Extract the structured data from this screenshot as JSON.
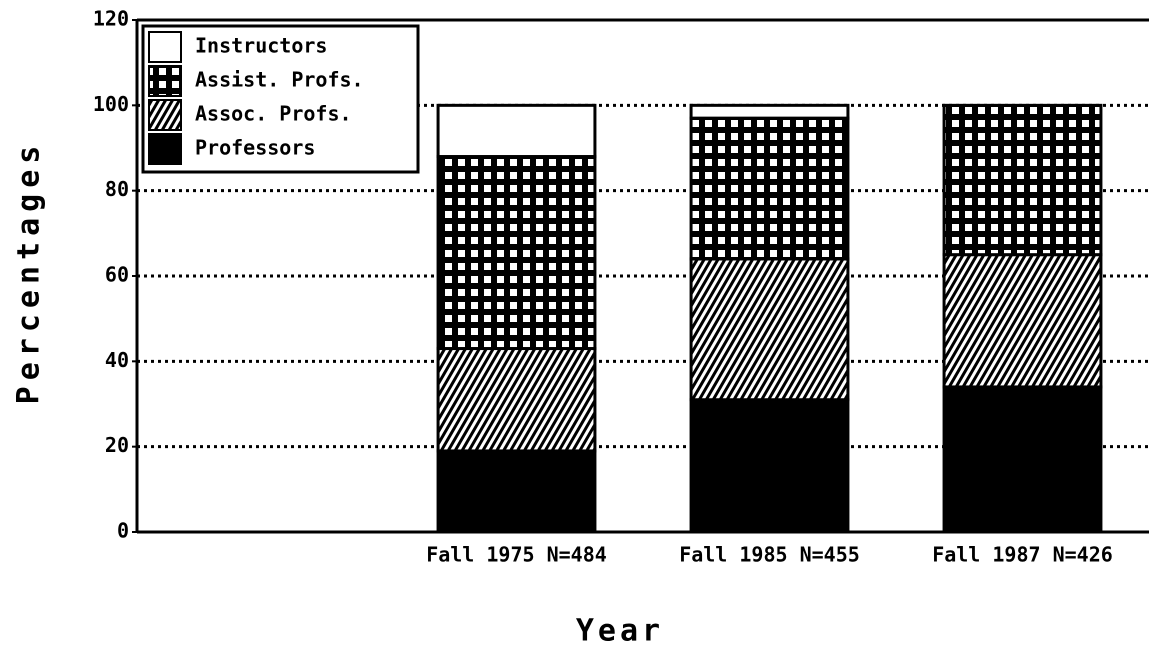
{
  "chart_data": {
    "type": "stacked_bar",
    "x_label": "Year",
    "y_label": "Percentages",
    "categories": [
      null,
      "Fall 1975 N=484",
      "Fall 1985 N=455",
      "Fall 1987 N=426"
    ],
    "series": [
      {
        "name": "Professors",
        "color": "#000000",
        "pattern": "solid",
        "values": [
          null,
          19,
          31,
          34
        ]
      },
      {
        "name": "Assoc. Profs.",
        "color": "#000000",
        "pattern": "hatch",
        "values": [
          null,
          24,
          33,
          31
        ]
      },
      {
        "name": "Assist. Profs.",
        "color": "#000000",
        "pattern": "grid",
        "values": [
          null,
          45,
          33,
          35
        ]
      },
      {
        "name": "Instructors",
        "color": "#000000",
        "pattern": "none",
        "values": [
          null,
          12,
          3,
          0
        ]
      }
    ],
    "ylim": [
      0,
      120
    ],
    "yticks": [
      0,
      20,
      40,
      60,
      80,
      100,
      120
    ],
    "grid": true,
    "legend": "upper left"
  }
}
